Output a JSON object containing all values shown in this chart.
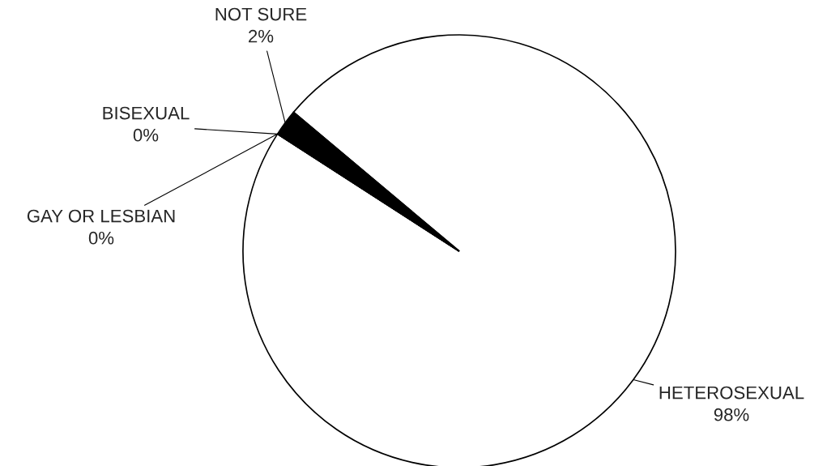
{
  "chart_data": {
    "type": "pie",
    "categories": [
      "HETEROSEXUAL",
      "GAY OR LESBIAN",
      "BISEXUAL",
      "NOT SURE"
    ],
    "values": [
      98,
      0,
      0,
      2
    ],
    "colors": [
      "#ffffff",
      "#ffffff",
      "#ffffff",
      "#000000"
    ],
    "value_labels": [
      "98%",
      "0%",
      "0%",
      "2%"
    ]
  }
}
